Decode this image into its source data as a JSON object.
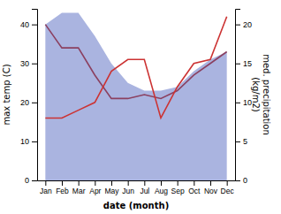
{
  "chart_data": {
    "type": "line",
    "xlabel": "date (month)",
    "ylabel": "max temp (C)",
    "y2label": "med. precipitation\n(kg/m2)",
    "categories": [
      "Jan",
      "Feb",
      "Mar",
      "Apr",
      "May",
      "Jun",
      "Jul",
      "Aug",
      "Sep",
      "Oct",
      "Nov",
      "Dec"
    ],
    "series": [
      {
        "type": "area",
        "color": "#aab4e0",
        "values": [
          40,
          43,
          43,
          37,
          30,
          25,
          23,
          23,
          24,
          28,
          31,
          33
        ],
        "lower": [
          0,
          0,
          0,
          0,
          0,
          0,
          0,
          0,
          0,
          0,
          0,
          0
        ]
      },
      {
        "type": "line",
        "color": "#8b4060",
        "values": [
          40,
          34,
          34,
          27,
          21,
          21,
          22,
          21,
          23,
          27,
          30,
          33
        ]
      },
      {
        "type": "line",
        "color": "#cc3333",
        "axis": "y2",
        "values": [
          8.0,
          8.0,
          9.0,
          10.0,
          14.0,
          15.5,
          15.5,
          8.0,
          12.0,
          15.0,
          15.5,
          21.0
        ]
      }
    ],
    "ylim": [
      0,
      44
    ],
    "yticks": [
      0,
      10,
      20,
      30,
      40
    ],
    "y2lim": [
      0,
      22
    ],
    "y2ticks": [
      0,
      5,
      10,
      15,
      20
    ],
    "grid": false
  }
}
